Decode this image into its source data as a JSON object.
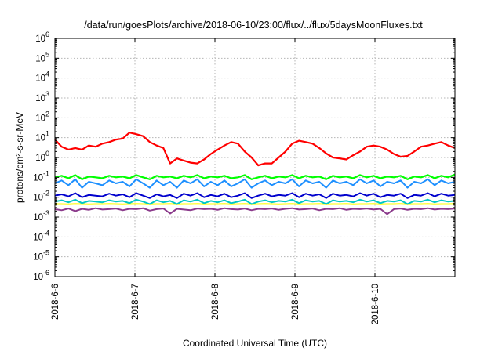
{
  "chart_data": {
    "type": "line",
    "title": "/data/run/goesPlots/archive/2018-06-10/23:00/flux/../flux/5daysMoonFluxes.txt",
    "xlabel": "Coordinated Universal Time (UTC)",
    "ylabel": "protons/cm²-s-sr-MeV",
    "yscale": "log",
    "ylim_exponents": [
      -6,
      6
    ],
    "ytick_exponents": [
      -6,
      -5,
      -4,
      -3,
      -2,
      -1,
      0,
      1,
      2,
      3,
      4,
      5,
      6
    ],
    "ytick_base": "10",
    "xlim_days": [
      "2018-6-6",
      "2018-6-11"
    ],
    "xticks": [
      "2018-6-6",
      "2018-6-7",
      "2018-6-8",
      "2018-6-9",
      "2018-6-10"
    ],
    "grid": true,
    "legend": "none",
    "series": [
      {
        "color": "#ff0000",
        "values": [
          8,
          3.5,
          2.5,
          3,
          2.5,
          4,
          3.5,
          5,
          6,
          8,
          9,
          18,
          15,
          12,
          6,
          4,
          3,
          0.5,
          0.9,
          0.7,
          0.55,
          0.5,
          0.8,
          1.5,
          2.5,
          4,
          6,
          5,
          2,
          1,
          0.4,
          0.5,
          0.5,
          1,
          2,
          5,
          7,
          6,
          5,
          3,
          1.6,
          1,
          0.9,
          0.8,
          1.3,
          2,
          3.5,
          4,
          3.5,
          2.5,
          1.5,
          1.1,
          1.2,
          2,
          3.5,
          4,
          5,
          6,
          4,
          3
        ]
      },
      {
        "color": "#00ff00",
        "values": [
          0.1,
          0.12,
          0.09,
          0.13,
          0.08,
          0.11,
          0.1,
          0.09,
          0.12,
          0.1,
          0.11,
          0.09,
          0.13,
          0.1,
          0.08,
          0.12,
          0.1,
          0.11,
          0.09,
          0.12,
          0.1,
          0.13,
          0.09,
          0.11,
          0.1,
          0.12,
          0.09,
          0.1,
          0.13,
          0.08,
          0.1,
          0.12,
          0.09,
          0.11,
          0.1,
          0.13,
          0.09,
          0.12,
          0.1,
          0.11,
          0.08,
          0.12,
          0.1,
          0.11,
          0.09,
          0.13,
          0.1,
          0.12,
          0.09,
          0.11,
          0.1,
          0.12,
          0.08,
          0.11,
          0.1,
          0.13,
          0.09,
          0.12,
          0.1,
          0.14
        ]
      },
      {
        "color": "#1e90ff",
        "values": [
          0.05,
          0.07,
          0.04,
          0.08,
          0.03,
          0.06,
          0.05,
          0.04,
          0.07,
          0.05,
          0.06,
          0.035,
          0.08,
          0.05,
          0.03,
          0.07,
          0.04,
          0.06,
          0.03,
          0.07,
          0.05,
          0.08,
          0.035,
          0.06,
          0.04,
          0.07,
          0.035,
          0.05,
          0.08,
          0.03,
          0.05,
          0.07,
          0.04,
          0.06,
          0.05,
          0.08,
          0.035,
          0.07,
          0.05,
          0.06,
          0.03,
          0.07,
          0.05,
          0.06,
          0.04,
          0.08,
          0.05,
          0.07,
          0.035,
          0.06,
          0.05,
          0.07,
          0.03,
          0.06,
          0.05,
          0.08,
          0.04,
          0.07,
          0.05,
          0.06
        ]
      },
      {
        "color": "#0000cd",
        "values": [
          0.012,
          0.014,
          0.011,
          0.016,
          0.01,
          0.013,
          0.012,
          0.011,
          0.015,
          0.012,
          0.014,
          0.01,
          0.016,
          0.012,
          0.009,
          0.014,
          0.011,
          0.013,
          0.009,
          0.015,
          0.012,
          0.016,
          0.01,
          0.013,
          0.011,
          0.015,
          0.01,
          0.012,
          0.016,
          0.009,
          0.012,
          0.015,
          0.011,
          0.013,
          0.012,
          0.016,
          0.01,
          0.015,
          0.012,
          0.014,
          0.009,
          0.015,
          0.012,
          0.013,
          0.011,
          0.016,
          0.012,
          0.015,
          0.01,
          0.013,
          0.012,
          0.015,
          0.009,
          0.013,
          0.012,
          0.016,
          0.011,
          0.015,
          0.012,
          0.013
        ]
      },
      {
        "color": "#00c8c8",
        "values": [
          0.006,
          0.007,
          0.0055,
          0.0075,
          0.005,
          0.0065,
          0.006,
          0.0055,
          0.007,
          0.006,
          0.0065,
          0.005,
          0.0075,
          0.006,
          0.0045,
          0.007,
          0.0055,
          0.0065,
          0.0045,
          0.007,
          0.006,
          0.0075,
          0.005,
          0.0065,
          0.0055,
          0.007,
          0.005,
          0.006,
          0.0075,
          0.0045,
          0.006,
          0.007,
          0.0055,
          0.0065,
          0.006,
          0.0075,
          0.005,
          0.007,
          0.006,
          0.0065,
          0.0045,
          0.007,
          0.006,
          0.0065,
          0.0055,
          0.0075,
          0.006,
          0.007,
          0.005,
          0.0065,
          0.006,
          0.007,
          0.0045,
          0.0065,
          0.006,
          0.0075,
          0.0055,
          0.007,
          0.006,
          0.0065
        ]
      },
      {
        "color": "#ffff00",
        "values": [
          0.0045,
          0.0045,
          0.0044,
          0.0046,
          0.0045,
          0.0044,
          0.0045,
          0.0045,
          0.0046,
          0.0045,
          0.0044,
          0.0045,
          0.0046,
          0.0045,
          0.0044,
          0.0045,
          0.0045,
          0.0046,
          0.0044,
          0.0045,
          0.0045,
          0.0046,
          0.0044,
          0.0045,
          0.0045,
          0.0046,
          0.0044,
          0.0045,
          0.0046,
          0.0044,
          0.0045,
          0.0046,
          0.0045,
          0.0044,
          0.0045,
          0.0046,
          0.0044,
          0.0045,
          0.0045,
          0.0046,
          0.0044,
          0.0045,
          0.0045,
          0.0046,
          0.0044,
          0.0045,
          0.0045,
          0.0046,
          0.0044,
          0.0045,
          0.0045,
          0.0046,
          0.0044,
          0.0045,
          0.0045,
          0.0046,
          0.0044,
          0.0045,
          0.0045,
          0.0046
        ]
      },
      {
        "color": "#8b3a8b",
        "values": [
          0.0025,
          0.0022,
          0.0027,
          0.002,
          0.0026,
          0.0023,
          0.0028,
          0.0024,
          0.0025,
          0.0027,
          0.0022,
          0.0026,
          0.0025,
          0.0028,
          0.0021,
          0.0025,
          0.0027,
          0.0015,
          0.0026,
          0.0024,
          0.0022,
          0.0027,
          0.0025,
          0.0026,
          0.0023,
          0.0028,
          0.0025,
          0.0024,
          0.0027,
          0.0022,
          0.0026,
          0.0025,
          0.0027,
          0.0023,
          0.0026,
          0.0028,
          0.0024,
          0.0025,
          0.0027,
          0.0022,
          0.0026,
          0.0025,
          0.0028,
          0.0023,
          0.0026,
          0.0025,
          0.0027,
          0.0024,
          0.0026,
          0.0014,
          0.0025,
          0.0027,
          0.0023,
          0.0026,
          0.0025,
          0.0028,
          0.0024,
          0.0026,
          0.0025,
          0.0027
        ]
      }
    ]
  }
}
